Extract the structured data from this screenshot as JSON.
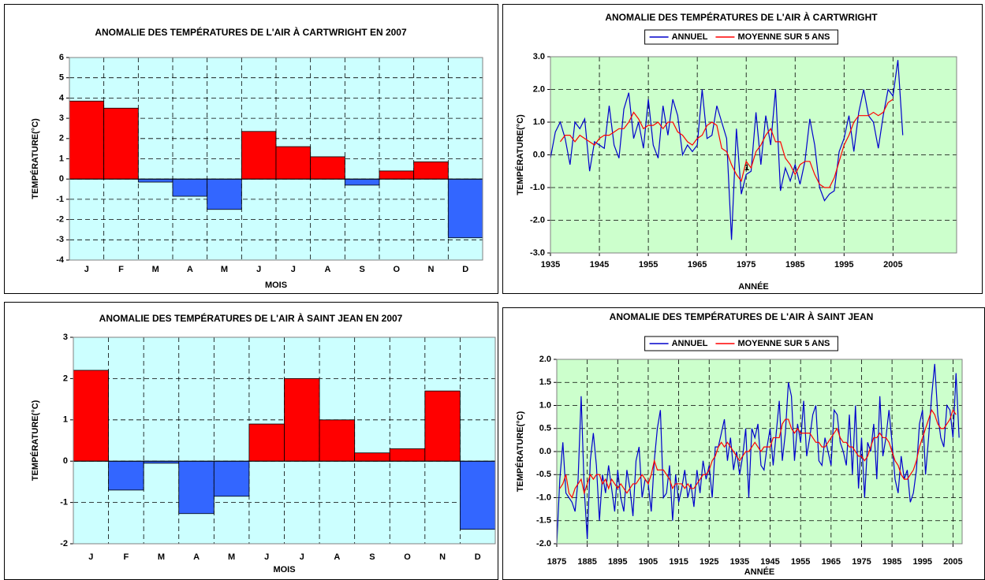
{
  "chart_data": [
    {
      "type": "bar",
      "title": "ANOMALIE DES TEMPÉRATURES DE L'AIR À CARTWRIGHT EN 2007",
      "x_label": "MOIS",
      "y_label": "TEMPÉRATURE(°C)",
      "categories": [
        "J",
        "F",
        "M",
        "A",
        "M",
        "J",
        "J",
        "A",
        "S",
        "O",
        "N",
        "D"
      ],
      "values": [
        3.85,
        3.5,
        -0.15,
        -0.85,
        -1.5,
        2.35,
        1.6,
        1.1,
        -0.3,
        0.4,
        0.85,
        -2.9
      ],
      "positive_color": "#ff0000",
      "negative_color": "#3366ff",
      "background": "#ccffff",
      "ylim": [
        -4,
        6
      ],
      "yticks": [
        -4,
        -3,
        -2,
        -1,
        0,
        1,
        2,
        3,
        4,
        5,
        6
      ],
      "grid": true
    },
    {
      "type": "line",
      "title": "ANOMALIE DES TEMPÉRATURES DE L'AIR À CARTWRIGHT",
      "x_label": "ANNÉE",
      "y_label": "TEMPÉRATURE(°C)",
      "background": "#ccffcc",
      "grid": true,
      "legend": "top",
      "annotations": [
        "1"
      ],
      "x": [
        1935,
        1936,
        1937,
        1938,
        1939,
        1940,
        1941,
        1942,
        1943,
        1944,
        1945,
        1946,
        1947,
        1948,
        1949,
        1950,
        1951,
        1952,
        1953,
        1954,
        1955,
        1956,
        1957,
        1958,
        1959,
        1960,
        1961,
        1962,
        1963,
        1964,
        1965,
        1966,
        1967,
        1968,
        1969,
        1970,
        1971,
        1972,
        1973,
        1974,
        1975,
        1976,
        1977,
        1978,
        1979,
        1980,
        1981,
        1982,
        1983,
        1984,
        1985,
        1986,
        1987,
        1988,
        1989,
        1990,
        1991,
        1992,
        1993,
        1994,
        1995,
        1996,
        1997,
        1998,
        1999,
        2000,
        2001,
        2002,
        2003,
        2004,
        2005,
        2006,
        2007
      ],
      "series": [
        {
          "name": "ANNUEL",
          "color": "#0000cc",
          "values": [
            -0.1,
            0.7,
            1.0,
            0.5,
            -0.3,
            1.0,
            0.8,
            1.1,
            -0.5,
            0.4,
            0.3,
            0.2,
            1.5,
            0.3,
            -0.1,
            1.4,
            1.9,
            0.5,
            1.0,
            0.2,
            1.7,
            0.3,
            -0.1,
            1.5,
            0.6,
            1.7,
            1.2,
            0.0,
            0.3,
            0.1,
            0.3,
            2.0,
            0.5,
            0.6,
            1.5,
            1.0,
            0.5,
            -2.6,
            0.8,
            -1.2,
            -0.6,
            -0.5,
            1.3,
            -0.3,
            1.2,
            0.3,
            2.0,
            -1.1,
            -0.4,
            -0.8,
            -0.3,
            -0.9,
            -0.2,
            1.1,
            0.3,
            -1.0,
            -1.4,
            -1.2,
            -1.1,
            0.1,
            0.5,
            1.2,
            0.1,
            1.3,
            2.0,
            1.2,
            1.0,
            0.2,
            1.2,
            2.0,
            1.8,
            2.9,
            0.6
          ]
        },
        {
          "name": "MOYENNE SUR 5 ANS",
          "color": "#ff0000",
          "values": [
            null,
            null,
            0.4,
            0.6,
            0.6,
            0.4,
            0.6,
            0.5,
            0.4,
            0.3,
            0.5,
            0.6,
            0.6,
            0.7,
            0.8,
            0.8,
            1.0,
            1.3,
            1.1,
            0.8,
            0.9,
            0.9,
            1.0,
            0.8,
            1.0,
            1.0,
            0.7,
            0.6,
            0.4,
            0.3,
            0.5,
            0.6,
            0.9,
            1.0,
            0.9,
            0.2,
            0.1,
            -0.3,
            -0.6,
            -0.8,
            -0.2,
            -0.4,
            0.1,
            0.3,
            0.6,
            0.8,
            0.4,
            0.4,
            -0.1,
            -0.3,
            -0.6,
            -0.3,
            -0.2,
            -0.2,
            -0.6,
            -0.9,
            -1.0,
            -1.0,
            -0.7,
            -0.2,
            0.3,
            0.6,
            1.0,
            1.2,
            1.2,
            1.2,
            1.3,
            1.2,
            1.3,
            1.6,
            1.7,
            null,
            null
          ]
        }
      ],
      "xlim": [
        1935,
        2018
      ],
      "xticks": [
        1935,
        1945,
        1955,
        1965,
        1975,
        1985,
        1995,
        2005
      ],
      "ylim": [
        -3,
        3
      ],
      "yticks": [
        {
          "value": -3,
          "label": "-3.0"
        },
        {
          "value": -2,
          "label": "-2.0"
        },
        {
          "value": -1,
          "label": "-1.0"
        },
        {
          "value": 0,
          "label": "0.0"
        },
        {
          "value": 1,
          "label": "1.0"
        },
        {
          "value": 2,
          "label": "2.0"
        },
        {
          "value": 3,
          "label": "3.0"
        }
      ]
    },
    {
      "type": "bar",
      "title": "ANOMALIE DES TEMPÉRATURES DE L'AIR À SAINT JEAN EN 2007",
      "x_label": "MOIS",
      "y_label": "TEMPÉRATURE(°C)",
      "categories": [
        "J",
        "F",
        "M",
        "A",
        "M",
        "J",
        "J",
        "A",
        "S",
        "O",
        "N",
        "D"
      ],
      "values": [
        2.2,
        -0.7,
        -0.05,
        -1.27,
        -0.85,
        0.9,
        2.0,
        1.0,
        0.2,
        0.3,
        1.7,
        -1.65
      ],
      "positive_color": "#ff0000",
      "negative_color": "#3366ff",
      "background": "#ccffff",
      "ylim": [
        -2,
        3
      ],
      "yticks": [
        -2,
        -1,
        0,
        1,
        2,
        3
      ],
      "grid": true
    },
    {
      "type": "line",
      "title": "ANOMALIE DES TEMPÉRATURES DE L'AIR À SAINT JEAN",
      "x_label": "ANNÉE",
      "y_label": "TEMPÉRATURE(°C)",
      "background": "#ccffcc",
      "grid": true,
      "legend": "top",
      "x": [
        1875,
        1876,
        1877,
        1878,
        1879,
        1880,
        1881,
        1882,
        1883,
        1884,
        1885,
        1886,
        1887,
        1888,
        1889,
        1890,
        1891,
        1892,
        1893,
        1894,
        1895,
        1896,
        1897,
        1898,
        1899,
        1900,
        1901,
        1902,
        1903,
        1904,
        1905,
        1906,
        1907,
        1908,
        1909,
        1910,
        1911,
        1912,
        1913,
        1914,
        1915,
        1916,
        1917,
        1918,
        1919,
        1920,
        1921,
        1922,
        1923,
        1924,
        1925,
        1926,
        1927,
        1928,
        1929,
        1930,
        1931,
        1932,
        1933,
        1934,
        1935,
        1936,
        1937,
        1938,
        1939,
        1940,
        1941,
        1942,
        1943,
        1944,
        1945,
        1946,
        1947,
        1948,
        1949,
        1950,
        1951,
        1952,
        1953,
        1954,
        1955,
        1956,
        1957,
        1958,
        1959,
        1960,
        1961,
        1962,
        1963,
        1964,
        1965,
        1966,
        1967,
        1968,
        1969,
        1970,
        1971,
        1972,
        1973,
        1974,
        1975,
        1976,
        1977,
        1978,
        1979,
        1980,
        1981,
        1982,
        1983,
        1984,
        1985,
        1986,
        1987,
        1988,
        1989,
        1990,
        1991,
        1992,
        1993,
        1994,
        1995,
        1996,
        1997,
        1998,
        1999,
        2000,
        2001,
        2002,
        2003,
        2004,
        2005,
        2006,
        2007
      ],
      "series": [
        {
          "name": "ANNUEL",
          "color": "#0000cc",
          "values": [
            -2.0,
            -0.6,
            0.2,
            -0.9,
            -1.0,
            -1.1,
            -1.3,
            -0.6,
            1.2,
            -0.8,
            -1.9,
            -0.2,
            0.4,
            -0.3,
            -1.5,
            -0.5,
            -0.9,
            -0.3,
            -0.8,
            -1.3,
            -0.4,
            -1.0,
            -1.3,
            -0.4,
            -0.8,
            -1.4,
            -0.2,
            0.1,
            -1.0,
            -0.6,
            -0.7,
            -1.3,
            -0.2,
            0.5,
            0.9,
            -1.0,
            -0.9,
            -0.3,
            -1.5,
            -0.5,
            -1.1,
            -0.8,
            -0.4,
            -1.0,
            -0.7,
            -1.2,
            -0.4,
            -0.9,
            -0.2,
            -0.6,
            -0.3,
            -1.0,
            0.1,
            0.1,
            0.4,
            0.7,
            -0.2,
            0.3,
            -0.4,
            0.0,
            -0.5,
            -0.1,
            0.5,
            -1.0,
            0.5,
            0.3,
            0.6,
            -0.3,
            -0.4,
            0.1,
            0.5,
            -0.3,
            0.4,
            1.1,
            -0.2,
            0.4,
            1.5,
            1.2,
            -0.2,
            0.6,
            0.2,
            1.1,
            -0.1,
            0.3,
            0.8,
            1.0,
            -0.2,
            -0.3,
            0.3,
            0.0,
            -0.3,
            0.9,
            0.8,
            0.2,
            0.0,
            -0.3,
            0.8,
            -0.5,
            1.0,
            -0.8,
            0.3,
            -1.0,
            0.2,
            0.0,
            0.6,
            -0.6,
            1.2,
            -0.1,
            0.3,
            0.9,
            0.2,
            -0.6,
            -0.9,
            -0.1,
            -0.6,
            -0.4,
            -1.1,
            -0.9,
            -0.4,
            0.6,
            0.9,
            -0.5,
            0.3,
            1.2,
            1.9,
            0.8,
            0.3,
            0.1,
            1.0,
            0.9,
            0.3,
            1.7,
            0.3
          ]
        },
        {
          "name": "MOYENNE SUR 5 ANS",
          "color": "#ff0000",
          "values": [
            null,
            -0.8,
            -0.7,
            -0.5,
            -0.9,
            -1.0,
            -0.8,
            -0.7,
            -0.6,
            -0.9,
            -0.7,
            -0.5,
            -0.6,
            -0.5,
            -0.5,
            -0.7,
            -0.6,
            -0.8,
            -0.6,
            -0.7,
            -0.8,
            -0.7,
            -0.8,
            -0.9,
            -0.8,
            -0.7,
            -0.7,
            -0.6,
            -0.5,
            -0.6,
            -0.7,
            -0.5,
            -0.2,
            -0.4,
            -0.4,
            -0.4,
            -0.5,
            -0.6,
            -0.8,
            -0.7,
            -0.7,
            -0.7,
            -0.8,
            -0.7,
            -0.8,
            -0.8,
            -0.7,
            -0.6,
            -0.5,
            -0.5,
            -0.4,
            -0.2,
            -0.1,
            0.1,
            0.2,
            0.1,
            0.2,
            0.1,
            0.0,
            -0.1,
            -0.2,
            -0.1,
            0.0,
            0.0,
            0.1,
            0.2,
            0.1,
            0.0,
            0.1,
            0.1,
            0.1,
            0.3,
            0.3,
            0.3,
            0.6,
            0.7,
            0.7,
            0.5,
            0.4,
            0.5,
            0.4,
            0.4,
            0.4,
            0.4,
            0.3,
            0.2,
            0.2,
            0.1,
            0.1,
            0.2,
            0.3,
            0.4,
            0.5,
            0.3,
            0.2,
            0.2,
            0.1,
            0.1,
            0.0,
            -0.1,
            -0.1,
            -0.2,
            -0.1,
            0.1,
            0.3,
            0.3,
            0.4,
            0.3,
            0.3,
            0.2,
            0.0,
            -0.2,
            -0.3,
            -0.5,
            -0.6,
            -0.6,
            -0.5,
            -0.4,
            -0.2,
            0.1,
            0.3,
            0.5,
            0.7,
            0.9,
            0.8,
            0.6,
            0.5,
            0.5,
            0.6,
            0.7,
            0.9,
            0.8,
            null
          ]
        }
      ],
      "xlim": [
        1875,
        2008
      ],
      "xticks": [
        1875,
        1885,
        1895,
        1905,
        1915,
        1925,
        1935,
        1945,
        1955,
        1965,
        1975,
        1985,
        1995,
        2005
      ],
      "ylim": [
        -2,
        2
      ],
      "yticks": [
        {
          "value": -2,
          "label": "-2.0"
        },
        {
          "value": -1.5,
          "label": "-1.5"
        },
        {
          "value": -1,
          "label": "-1.0"
        },
        {
          "value": -0.5,
          "label": "-0.5"
        },
        {
          "value": 0,
          "label": "0.0"
        },
        {
          "value": 0.5,
          "label": "0.5"
        },
        {
          "value": 1,
          "label": "1.0"
        },
        {
          "value": 1.5,
          "label": "1.5"
        },
        {
          "value": 2,
          "label": "2.0"
        }
      ]
    }
  ]
}
